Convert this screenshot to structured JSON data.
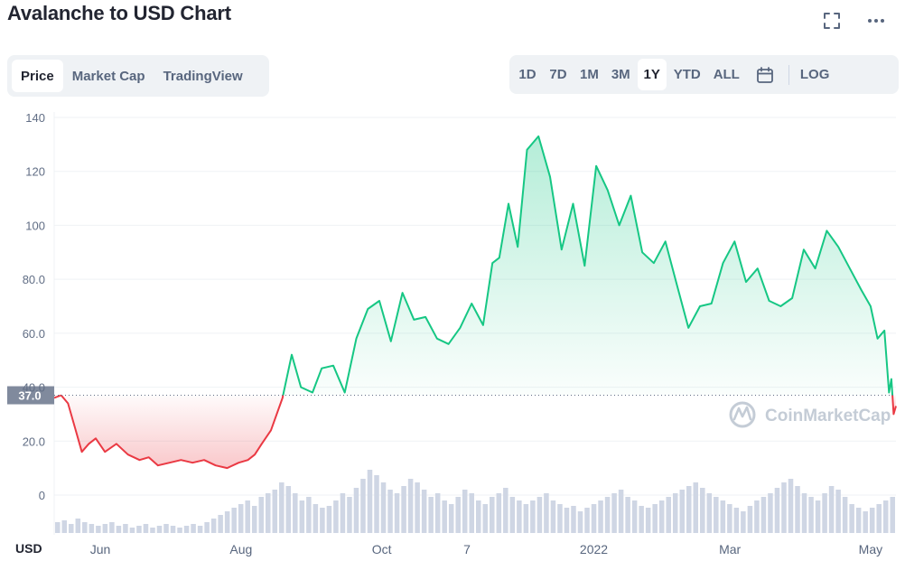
{
  "header": {
    "title": "Avalanche to USD Chart"
  },
  "toolbar": {
    "fullscreen_icon": "fullscreen-icon",
    "more_icon": "more-horizontal-icon"
  },
  "tabs": [
    {
      "label": "Price",
      "active": true
    },
    {
      "label": "Market Cap",
      "active": false
    },
    {
      "label": "TradingView",
      "active": false
    }
  ],
  "ranges": [
    {
      "label": "1D",
      "active": false
    },
    {
      "label": "7D",
      "active": false
    },
    {
      "label": "1M",
      "active": false
    },
    {
      "label": "3M",
      "active": false
    },
    {
      "label": "1Y",
      "active": true
    },
    {
      "label": "YTD",
      "active": false
    },
    {
      "label": "ALL",
      "active": false
    }
  ],
  "calendar_icon": "calendar-icon",
  "log_label": "LOG",
  "currency_label": "USD",
  "watermark": "CoinMarketCap",
  "colors": {
    "up": "#16c784",
    "down": "#ea3943",
    "grid": "#eff2f5",
    "label_bg": "#808a9d",
    "volume": "#cfd6e4"
  },
  "chart_data": {
    "type": "area",
    "baseline": 37.0,
    "baseline_label": "37.0",
    "ylim": [
      0,
      140
    ],
    "y_ticks": [
      {
        "value": 140,
        "label": "140"
      },
      {
        "value": 120,
        "label": "120"
      },
      {
        "value": 100,
        "label": "100"
      },
      {
        "value": 80,
        "label": "80.0"
      },
      {
        "value": 60,
        "label": "60.0"
      },
      {
        "value": 40,
        "label": "40.0"
      },
      {
        "value": 20,
        "label": "20.0"
      },
      {
        "value": 0,
        "label": "0"
      }
    ],
    "x_range": [
      "2021-05-12",
      "2022-05-12"
    ],
    "x_ticks": [
      {
        "date": "2021-06-01",
        "label": "Jun"
      },
      {
        "date": "2021-08-01",
        "label": "Aug"
      },
      {
        "date": "2021-10-01",
        "label": "Oct"
      },
      {
        "date": "2021-11-07",
        "label": "7"
      },
      {
        "date": "2022-01-01",
        "label": "2022"
      },
      {
        "date": "2022-03-01",
        "label": "Mar"
      },
      {
        "date": "2022-05-01",
        "label": "May"
      }
    ],
    "series": [
      {
        "x": [
          "2021-05-12",
          "2021-05-15",
          "2021-05-18",
          "2021-05-21",
          "2021-05-24",
          "2021-05-27",
          "2021-05-30",
          "2021-06-03",
          "2021-06-08",
          "2021-06-13",
          "2021-06-18",
          "2021-06-22",
          "2021-06-26",
          "2021-07-01",
          "2021-07-06",
          "2021-07-11",
          "2021-07-16",
          "2021-07-21",
          "2021-07-26",
          "2021-07-31",
          "2021-08-04",
          "2021-08-07",
          "2021-08-10",
          "2021-08-14",
          "2021-08-19",
          "2021-08-23",
          "2021-08-27",
          "2021-09-01",
          "2021-09-05",
          "2021-09-10",
          "2021-09-15",
          "2021-09-20",
          "2021-09-25",
          "2021-09-30",
          "2021-10-05",
          "2021-10-10",
          "2021-10-15",
          "2021-10-20",
          "2021-10-25",
          "2021-10-30",
          "2021-11-04",
          "2021-11-09",
          "2021-11-14",
          "2021-11-18",
          "2021-11-21",
          "2021-11-25",
          "2021-11-29",
          "2021-12-03",
          "2021-12-08",
          "2021-12-13",
          "2021-12-18",
          "2021-12-23",
          "2021-12-28",
          "2022-01-02",
          "2022-01-07",
          "2022-01-12",
          "2022-01-17",
          "2022-01-22",
          "2022-01-27",
          "2022-02-01",
          "2022-02-06",
          "2022-02-11",
          "2022-02-16",
          "2022-02-21",
          "2022-02-26",
          "2022-03-03",
          "2022-03-08",
          "2022-03-13",
          "2022-03-18",
          "2022-03-23",
          "2022-03-28",
          "2022-04-02",
          "2022-04-07",
          "2022-04-12",
          "2022-04-17",
          "2022-04-22",
          "2022-04-27",
          "2022-05-01",
          "2022-05-04",
          "2022-05-07",
          "2022-05-09",
          "2022-05-10",
          "2022-05-11",
          "2022-05-12"
        ],
        "y": [
          36,
          37,
          34,
          25,
          16,
          19,
          21,
          16,
          19,
          15,
          13,
          14,
          11,
          12,
          13,
          12,
          13,
          11,
          10,
          12,
          13,
          15,
          19,
          24,
          36,
          52,
          40,
          38,
          47,
          48,
          38,
          58,
          69,
          72,
          57,
          75,
          65,
          66,
          58,
          56,
          62,
          71,
          63,
          86,
          88,
          108,
          92,
          128,
          133,
          118,
          91,
          108,
          85,
          122,
          113,
          100,
          111,
          90,
          86,
          94,
          78,
          62,
          70,
          71,
          86,
          94,
          79,
          84,
          72,
          70,
          73,
          91,
          84,
          98,
          92,
          84,
          76,
          70,
          58,
          61,
          38,
          43,
          30,
          33
        ]
      }
    ],
    "volume": [
      6,
      7,
      5,
      8,
      6,
      5,
      4,
      5,
      6,
      4,
      5,
      3,
      4,
      5,
      3,
      4,
      5,
      4,
      3,
      4,
      5,
      4,
      6,
      8,
      10,
      12,
      14,
      16,
      18,
      15,
      20,
      22,
      24,
      28,
      26,
      22,
      18,
      20,
      16,
      14,
      15,
      18,
      22,
      20,
      25,
      30,
      35,
      32,
      28,
      24,
      22,
      26,
      30,
      28,
      24,
      20,
      22,
      18,
      16,
      20,
      24,
      22,
      18,
      16,
      20,
      22,
      25,
      20,
      18,
      16,
      18,
      20,
      22,
      18,
      16,
      14,
      15,
      12,
      14,
      16,
      18,
      20,
      22,
      24,
      20,
      18,
      15,
      14,
      16,
      18,
      20,
      22,
      24,
      26,
      28,
      25,
      22,
      20,
      18,
      16,
      14,
      12,
      15,
      18,
      20,
      22,
      25,
      28,
      30,
      26,
      22,
      20,
      18,
      22,
      26,
      24,
      20,
      16,
      14,
      12,
      14,
      16,
      18,
      20
    ]
  }
}
